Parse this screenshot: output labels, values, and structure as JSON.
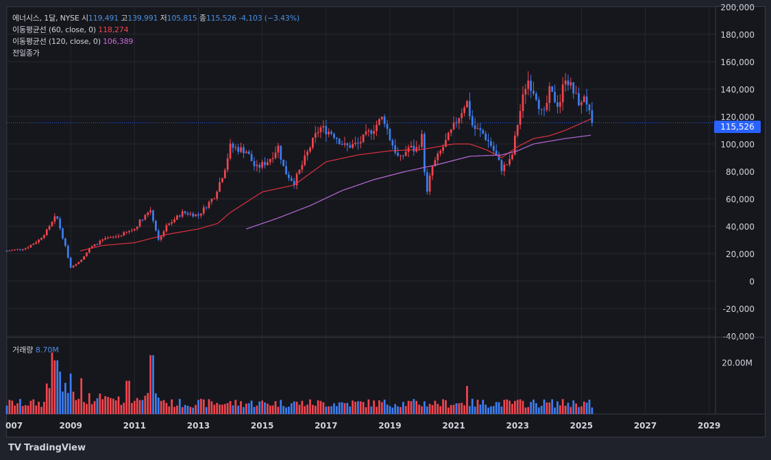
{
  "legend": {
    "symbol": "에너시스, 1달, NYSE",
    "open_label": "시",
    "open": "119,491",
    "high_label": "고",
    "high": "139,991",
    "low_label": "저",
    "low": "105,815",
    "close_label": "종",
    "close": "115,526",
    "change": "-4,103 (−3.43%)",
    "ma60_label": "이동평균선 (60, close, 0)",
    "ma60_value": "118,274",
    "ma120_label": "이동평균선 (120, close, 0)",
    "ma120_value": "106,389",
    "prev_close_label": "전일종가"
  },
  "volume": {
    "label": "거래량",
    "value": "8.70M"
  },
  "last_price_tag": "115,526",
  "footer": {
    "brand": "TradingView",
    "logo": "TV"
  },
  "colors": {
    "up": "#f2464f",
    "down": "#3d7ef2",
    "ma60": "#e0323e",
    "ma120": "#b96ad8",
    "bg": "#16171d",
    "grid": "#262830",
    "accent": "#2962ff"
  },
  "chart_data": {
    "type": "candlestick",
    "interval": "1M",
    "y_ticks": [
      "200,000",
      "180,000",
      "160,000",
      "140,000",
      "120,000",
      "100,000",
      "80,000",
      "60,000",
      "40,000",
      "20,000",
      "0",
      "-20,000",
      "-40,000"
    ],
    "y_range": [
      -40000,
      200000
    ],
    "x_ticks": [
      "007",
      "2009",
      "2011",
      "2013",
      "2015",
      "2017",
      "2019",
      "2021",
      "2023",
      "2025",
      "2027",
      "2029"
    ],
    "x_range": [
      2007.0,
      2029.2
    ],
    "volume_tick": "20.00M",
    "volume_range": [
      0,
      30000000
    ],
    "price_anchors": [
      [
        2007.0,
        22000
      ],
      [
        2007.6,
        24000
      ],
      [
        2008.0,
        30000
      ],
      [
        2008.3,
        38000
      ],
      [
        2008.55,
        48000
      ],
      [
        2008.8,
        28000
      ],
      [
        2009.0,
        10000
      ],
      [
        2009.3,
        15000
      ],
      [
        2009.6,
        24000
      ],
      [
        2010.0,
        30000
      ],
      [
        2010.5,
        33000
      ],
      [
        2011.0,
        38000
      ],
      [
        2011.2,
        45000
      ],
      [
        2011.5,
        52000
      ],
      [
        2011.75,
        30000
      ],
      [
        2012.0,
        40000
      ],
      [
        2012.5,
        50000
      ],
      [
        2013.0,
        48000
      ],
      [
        2013.5,
        62000
      ],
      [
        2013.8,
        80000
      ],
      [
        2014.0,
        98000
      ],
      [
        2014.5,
        95000
      ],
      [
        2014.8,
        82000
      ],
      [
        2015.2,
        88000
      ],
      [
        2015.5,
        98000
      ],
      [
        2015.7,
        80000
      ],
      [
        2016.0,
        72000
      ],
      [
        2016.2,
        82000
      ],
      [
        2016.5,
        98000
      ],
      [
        2016.8,
        112000
      ],
      [
        2017.2,
        108000
      ],
      [
        2017.6,
        98000
      ],
      [
        2018.0,
        100000
      ],
      [
        2018.5,
        112000
      ],
      [
        2018.8,
        120000
      ],
      [
        2019.0,
        104000
      ],
      [
        2019.3,
        88000
      ],
      [
        2019.6,
        98000
      ],
      [
        2019.8,
        95000
      ],
      [
        2020.0,
        105000
      ],
      [
        2020.15,
        62000
      ],
      [
        2020.3,
        82000
      ],
      [
        2020.6,
        95000
      ],
      [
        2020.9,
        108000
      ],
      [
        2021.2,
        122000
      ],
      [
        2021.4,
        132000
      ],
      [
        2021.6,
        112000
      ],
      [
        2021.9,
        108000
      ],
      [
        2022.2,
        98000
      ],
      [
        2022.5,
        82000
      ],
      [
        2022.8,
        88000
      ],
      [
        2023.0,
        115000
      ],
      [
        2023.3,
        148000
      ],
      [
        2023.6,
        135000
      ],
      [
        2023.8,
        118000
      ],
      [
        2024.0,
        138000
      ],
      [
        2024.3,
        128000
      ],
      [
        2024.5,
        150000
      ],
      [
        2024.8,
        135000
      ],
      [
        2025.0,
        128000
      ],
      [
        2025.1,
        138000
      ],
      [
        2025.3,
        115526
      ]
    ],
    "ma60_anchors": [
      [
        2009.3,
        22000
      ],
      [
        2010.0,
        26000
      ],
      [
        2011.0,
        28000
      ],
      [
        2012.0,
        34000
      ],
      [
        2013.0,
        38000
      ],
      [
        2013.6,
        42000
      ],
      [
        2014.0,
        50000
      ],
      [
        2015.0,
        65000
      ],
      [
        2016.0,
        70000
      ],
      [
        2017.0,
        87000
      ],
      [
        2018.0,
        92000
      ],
      [
        2019.0,
        95000
      ],
      [
        2020.0,
        96000
      ],
      [
        2021.0,
        100000
      ],
      [
        2021.5,
        100000
      ],
      [
        2022.0,
        96000
      ],
      [
        2022.5,
        90000
      ],
      [
        2023.0,
        98000
      ],
      [
        2023.5,
        104000
      ],
      [
        2024.0,
        106000
      ],
      [
        2024.5,
        110000
      ],
      [
        2025.3,
        118274
      ]
    ],
    "ma120_anchors": [
      [
        2014.5,
        38000
      ],
      [
        2015.5,
        46000
      ],
      [
        2016.5,
        55000
      ],
      [
        2017.5,
        66000
      ],
      [
        2018.5,
        74000
      ],
      [
        2019.5,
        80000
      ],
      [
        2020.5,
        85000
      ],
      [
        2021.5,
        91000
      ],
      [
        2022.5,
        92000
      ],
      [
        2023.0,
        95000
      ],
      [
        2023.5,
        100000
      ],
      [
        2024.0,
        102000
      ],
      [
        2024.5,
        104000
      ],
      [
        2025.3,
        106389
      ]
    ],
    "volume_months_start": 2007.0,
    "volume_spikes": [
      [
        2008.4,
        24000000
      ],
      [
        2008.55,
        21000000
      ],
      [
        2011.55,
        23000000
      ],
      [
        2009.35,
        14000000
      ],
      [
        2010.8,
        13000000
      ],
      [
        2021.4,
        11000000
      ]
    ]
  }
}
